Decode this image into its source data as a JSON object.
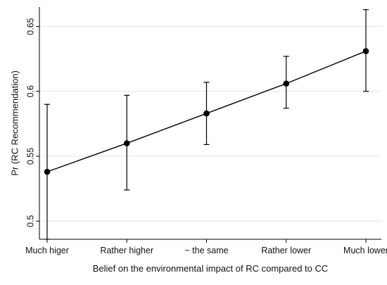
{
  "chart_data": {
    "type": "line",
    "title": "",
    "xlabel": "Belief on the environmental impact of RC compared to CC",
    "ylabel": "Pr (RC Recommendation)",
    "categories": [
      "Much higer",
      "Rather higher",
      "~ the same",
      "Rather lower",
      "Much lower"
    ],
    "series": [
      {
        "values": [
          0.538,
          0.56,
          0.583,
          0.606,
          0.631
        ],
        "ci_low": [
          0.486,
          0.524,
          0.559,
          0.587,
          0.6
        ],
        "ci_high": [
          0.59,
          0.597,
          0.607,
          0.627,
          0.663
        ],
        "color": "#000000"
      }
    ],
    "yticks": [
      0.5,
      0.55,
      0.6,
      0.65
    ],
    "ytick_labels": [
      "0.5",
      "0.55",
      "0.6",
      "0.65"
    ],
    "ylim": [
      0.486,
      0.665
    ],
    "grid": true,
    "grid_color": "#e6e6e6",
    "legend": "none"
  }
}
